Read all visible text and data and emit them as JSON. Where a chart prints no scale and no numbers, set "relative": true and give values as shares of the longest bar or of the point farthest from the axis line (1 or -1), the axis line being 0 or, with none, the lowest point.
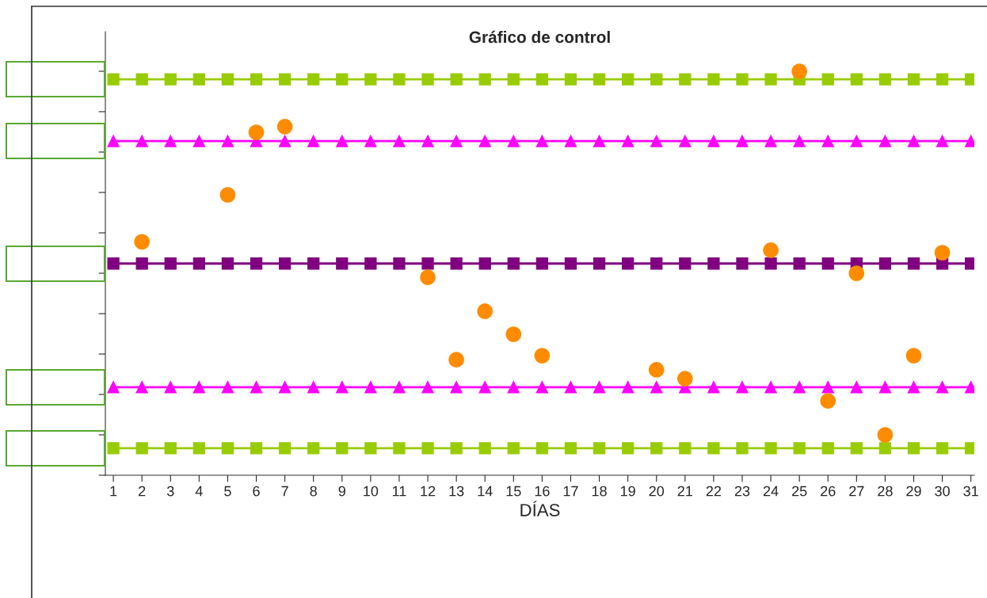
{
  "chart_data": {
    "type": "line",
    "title": "Gráfico de control",
    "xlabel": "DÍAS",
    "categories": [
      "1",
      "2",
      "3",
      "4",
      "5",
      "6",
      "7",
      "8",
      "9",
      "10",
      "11",
      "12",
      "13",
      "14",
      "15",
      "16",
      "17",
      "18",
      "19",
      "20",
      "21",
      "22",
      "23",
      "24",
      "25",
      "26",
      "27",
      "28",
      "29",
      "30",
      "31"
    ],
    "relative": true,
    "tick_labels": "x",
    "grid": false,
    "legend": false,
    "series": [
      {
        "marker": "square",
        "color": "#99cc00",
        "values": [
          0.98,
          0.98,
          0.98,
          0.98,
          0.98,
          0.98,
          0.98,
          0.98,
          0.98,
          0.98,
          0.98,
          0.98,
          0.98,
          0.98,
          0.98,
          0.98,
          0.98,
          0.98,
          0.98,
          0.98,
          0.98,
          0.98,
          0.98,
          0.98,
          0.98,
          0.98,
          0.98,
          0.98,
          0.98,
          0.98,
          0.98
        ]
      },
      {
        "marker": "triangle",
        "color": "#ff00ff",
        "values": [
          0.827,
          0.827,
          0.827,
          0.827,
          0.827,
          0.827,
          0.827,
          0.827,
          0.827,
          0.827,
          0.827,
          0.827,
          0.827,
          0.827,
          0.827,
          0.827,
          0.827,
          0.827,
          0.827,
          0.827,
          0.827,
          0.827,
          0.827,
          0.827,
          0.827,
          0.827,
          0.827,
          0.827,
          0.827,
          0.827,
          0.827
        ]
      },
      {
        "marker": "square",
        "color": "#800080",
        "values": [
          0.524,
          0.524,
          0.524,
          0.524,
          0.524,
          0.524,
          0.524,
          0.524,
          0.524,
          0.524,
          0.524,
          0.524,
          0.524,
          0.524,
          0.524,
          0.524,
          0.524,
          0.524,
          0.524,
          0.524,
          0.524,
          0.524,
          0.524,
          0.524,
          0.524,
          0.524,
          0.524,
          0.524,
          0.524,
          0.524,
          0.524
        ]
      },
      {
        "marker": "triangle",
        "color": "#ff00ff",
        "values": [
          0.218,
          0.218,
          0.218,
          0.218,
          0.218,
          0.218,
          0.218,
          0.218,
          0.218,
          0.218,
          0.218,
          0.218,
          0.218,
          0.218,
          0.218,
          0.218,
          0.218,
          0.218,
          0.218,
          0.218,
          0.218,
          0.218,
          0.218,
          0.218,
          0.218,
          0.218,
          0.218,
          0.218,
          0.218,
          0.218,
          0.218
        ]
      },
      {
        "marker": "square",
        "color": "#99cc00",
        "values": [
          0.067,
          0.067,
          0.067,
          0.067,
          0.067,
          0.067,
          0.067,
          0.067,
          0.067,
          0.067,
          0.067,
          0.067,
          0.067,
          0.067,
          0.067,
          0.067,
          0.067,
          0.067,
          0.067,
          0.067,
          0.067,
          0.067,
          0.067,
          0.067,
          0.067,
          0.067,
          0.067,
          0.067,
          0.067,
          0.067,
          0.067
        ]
      },
      {
        "type": "scatter",
        "marker": "circle",
        "color": "#ff8c00",
        "values": [
          null,
          0.578,
          null,
          null,
          0.694,
          0.849,
          0.863,
          null,
          null,
          null,
          null,
          0.49,
          0.286,
          0.406,
          0.349,
          0.296,
          null,
          null,
          null,
          0.261,
          0.239,
          null,
          null,
          0.557,
          1.0,
          0.184,
          0.5,
          0.1,
          0.296,
          0.551,
          null
        ]
      }
    ]
  }
}
